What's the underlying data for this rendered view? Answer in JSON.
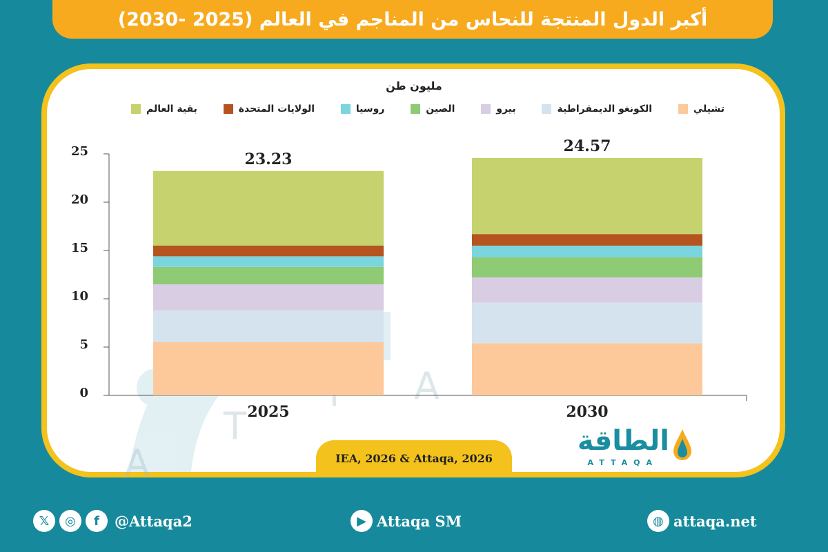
{
  "header": {
    "title": "أكبر الدول المنتجة للنحاس من المناجم في العالم (2025 -2030)"
  },
  "chart_data": {
    "type": "bar",
    "stacked": true,
    "unit_label": "مليون طن",
    "categories": [
      "2025",
      "2030"
    ],
    "totals": [
      "23.23",
      "24.57"
    ],
    "ylim": [
      0,
      25
    ],
    "yticks": [
      "0",
      "5",
      "10",
      "15",
      "20",
      "25"
    ],
    "legend_position": "top",
    "series": [
      {
        "name": "تشيلي",
        "color": "#fdc99b",
        "values": [
          5.5,
          5.4
        ]
      },
      {
        "name": "الكونغو الديمقراطية",
        "color": "#d5e3ee",
        "values": [
          3.3,
          4.2
        ]
      },
      {
        "name": "بيرو",
        "color": "#d9cde3",
        "values": [
          2.7,
          2.6
        ]
      },
      {
        "name": "الصين",
        "color": "#8fca75",
        "values": [
          1.8,
          2.1
        ]
      },
      {
        "name": "روسيا",
        "color": "#7ad5de",
        "values": [
          1.1,
          1.2
        ]
      },
      {
        "name": "الولايات المتحدة",
        "color": "#b5541e",
        "values": [
          1.1,
          1.2
        ]
      },
      {
        "name": "بقية العالم",
        "color": "#c6d26e",
        "values": [
          7.73,
          7.87
        ]
      }
    ]
  },
  "source": "IEA, 2026 & Attaqa, 2026",
  "brand": {
    "name_ar": "الطاقة",
    "name_en": "ATTAQA"
  },
  "footer": {
    "social_handle": "@Attaqa2",
    "youtube": "Attaqa SM",
    "website": "attaqa.net"
  }
}
